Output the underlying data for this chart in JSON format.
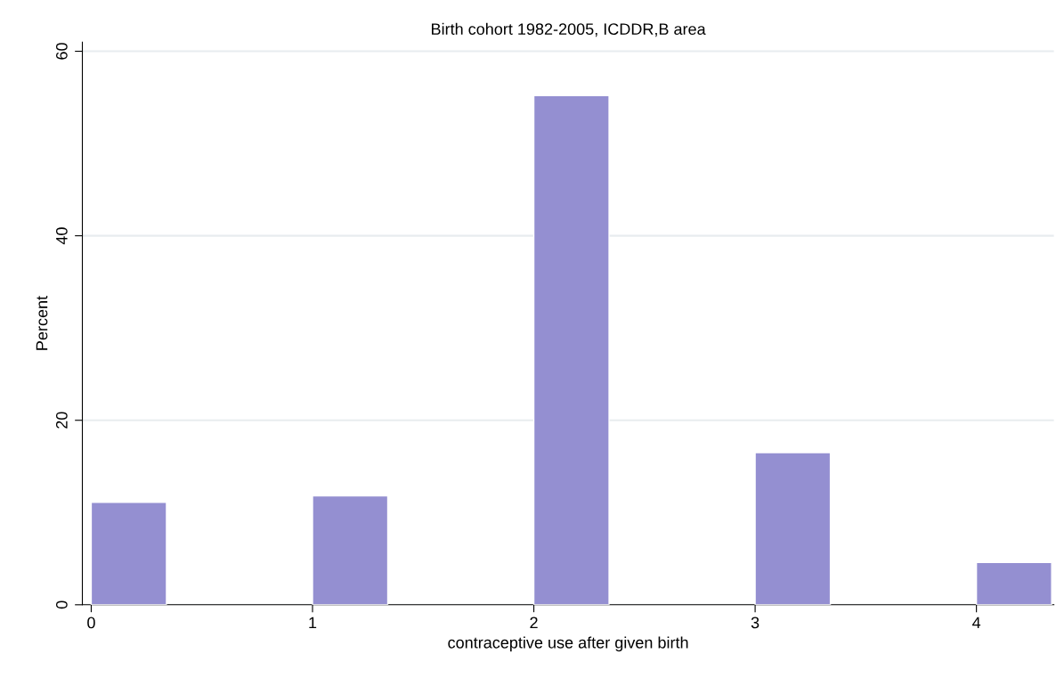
{
  "chart_data": {
    "type": "bar",
    "title": "Birth cohort 1982-2005, ICDDR,B area",
    "xlabel": "contraceptive use after given birth",
    "ylabel": "Percent",
    "x": [
      0.17,
      1.17,
      2.17,
      3.17,
      4.17
    ],
    "values": [
      11.1,
      11.8,
      55.2,
      16.5,
      4.6
    ],
    "color": "#948fd1",
    "xlim": [
      -0.04,
      4.35
    ],
    "xticks": [
      0,
      1,
      2,
      3,
      4
    ],
    "ylim": [
      0,
      61
    ],
    "yticks": [
      0,
      20,
      40,
      60
    ],
    "grid": "y"
  }
}
